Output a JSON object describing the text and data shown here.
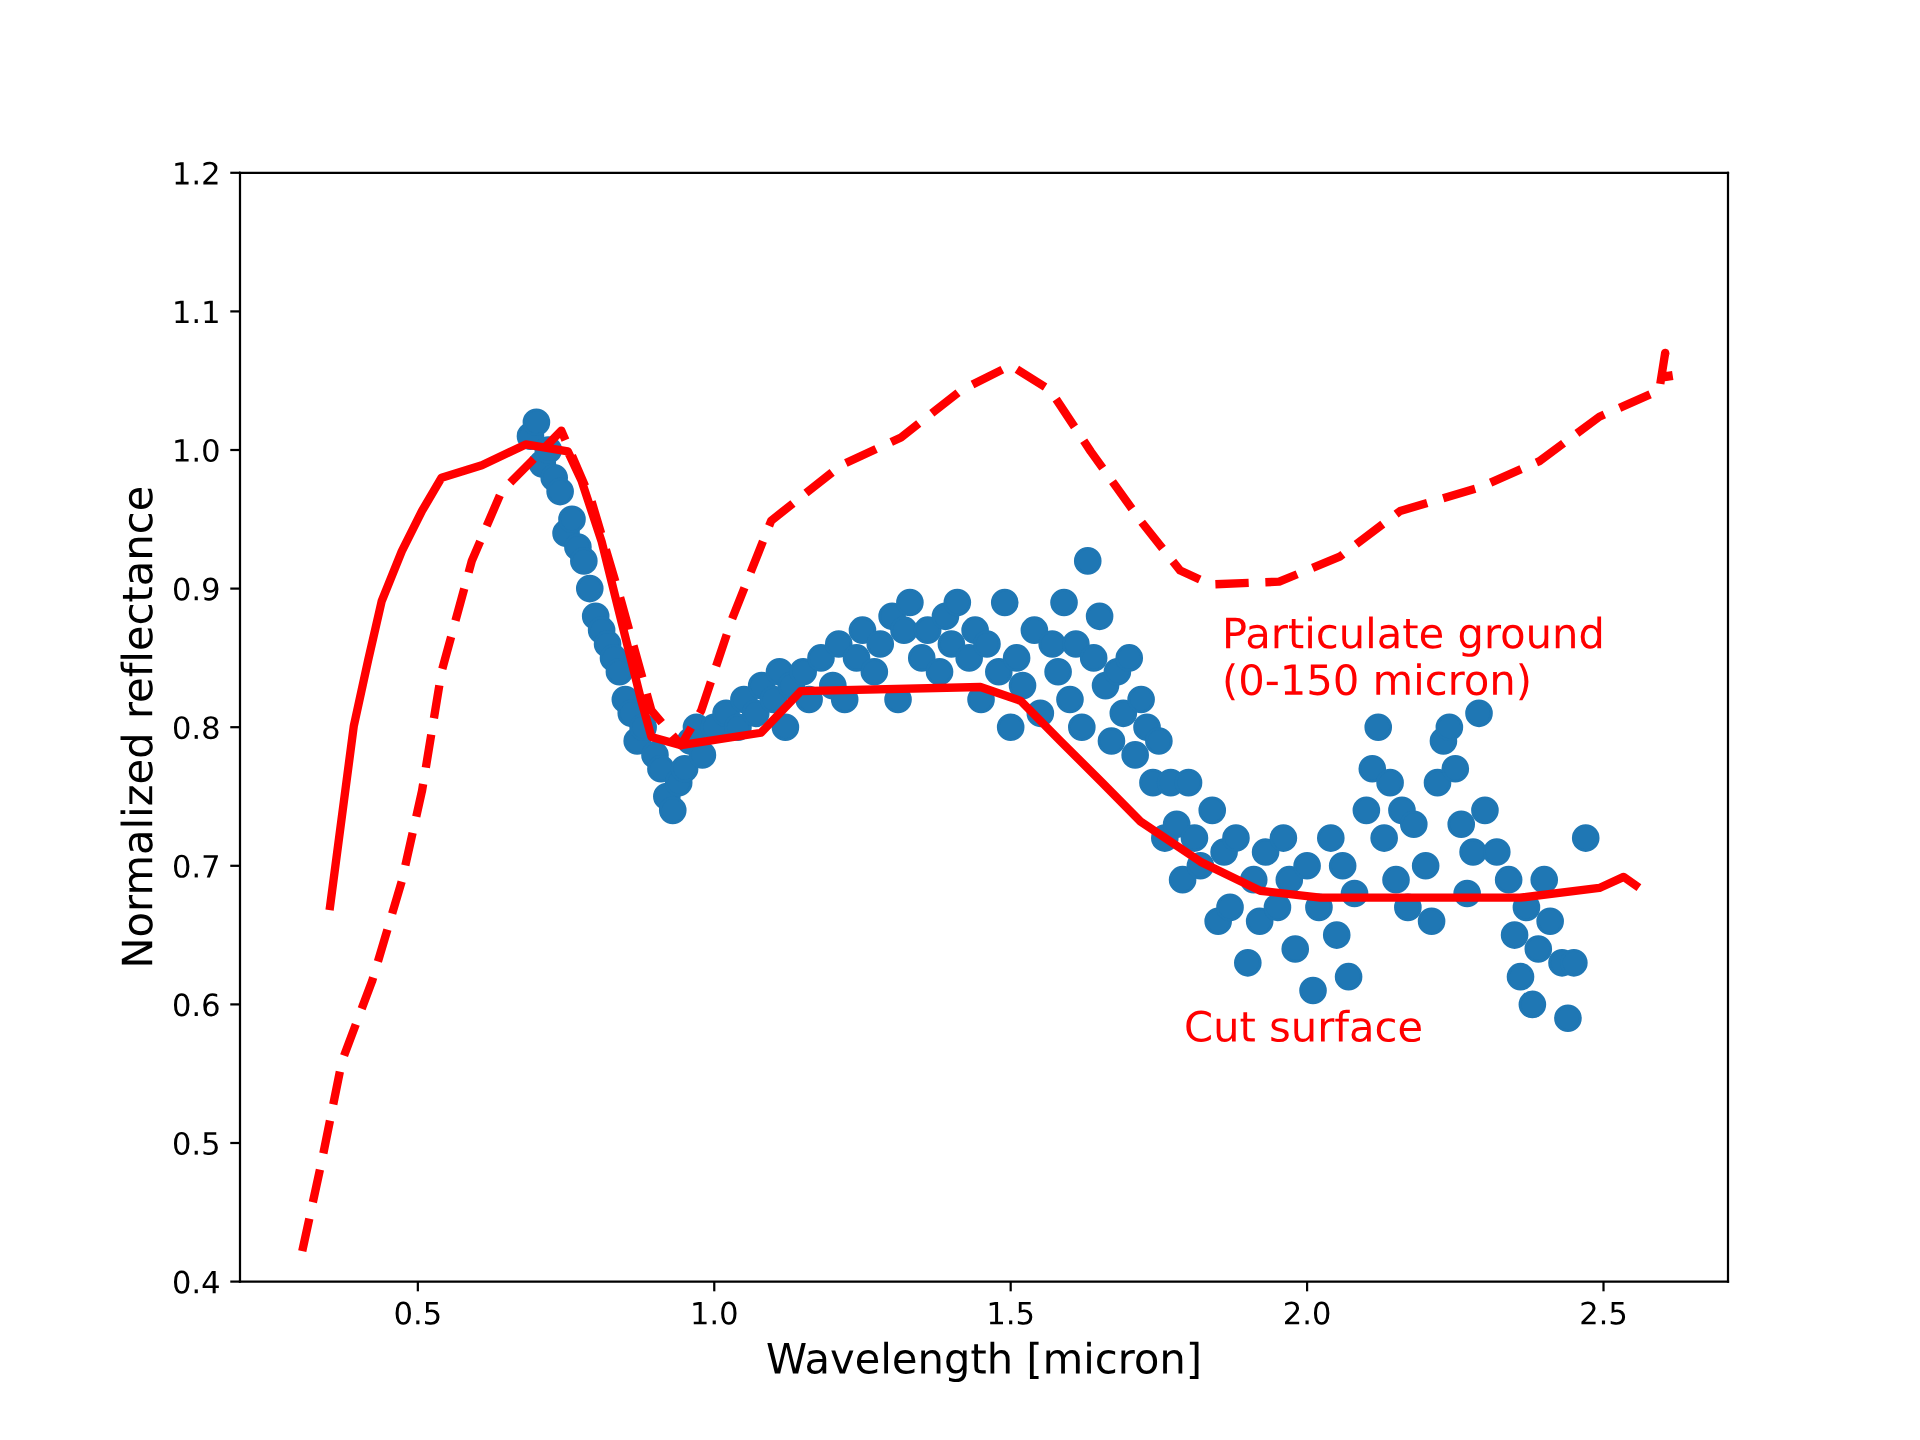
{
  "chart_data": {
    "type": "line",
    "xlabel": "Wavelength [micron]",
    "ylabel": "Normalized reflectance",
    "xlim": [
      0.2,
      2.71
    ],
    "ylim": [
      0.4,
      1.2
    ],
    "xticks": [
      0.5,
      {
        "value": 1,
        "label": "1.0"
      },
      1.5,
      {
        "value": 2,
        "label": "2.0"
      },
      2.5
    ],
    "yticks": [
      0.4,
      0.5,
      0.6,
      0.7,
      0.8,
      0.9,
      {
        "value": 1,
        "label": "1.0"
      },
      1.1,
      1.2
    ],
    "grid": false,
    "legend": false,
    "series": [
      {
        "type": "scatter",
        "marker": "circle",
        "color": "#1f77b4",
        "x": [
          0.69,
          0.7,
          0.71,
          0.72,
          0.73,
          0.74,
          0.75,
          0.76,
          0.77,
          0.78,
          0.79,
          0.8,
          0.81,
          0.82,
          0.83,
          0.84,
          0.85,
          0.86,
          0.87,
          0.88,
          0.9,
          0.91,
          0.92,
          0.93,
          0.94,
          0.95,
          0.96,
          0.97,
          0.98,
          1.0,
          1.02,
          1.04,
          1.05,
          1.07,
          1.08,
          1.1,
          1.11,
          1.12,
          1.13,
          1.15,
          1.16,
          1.18,
          1.2,
          1.21,
          1.22,
          1.24,
          1.25,
          1.27,
          1.28,
          1.3,
          1.31,
          1.32,
          1.33,
          1.35,
          1.36,
          1.38,
          1.39,
          1.4,
          1.41,
          1.43,
          1.44,
          1.45,
          1.46,
          1.48,
          1.49,
          1.5,
          1.51,
          1.52,
          1.54,
          1.55,
          1.57,
          1.58,
          1.59,
          1.6,
          1.61,
          1.62,
          1.63,
          1.64,
          1.65,
          1.66,
          1.67,
          1.68,
          1.69,
          1.7,
          1.71,
          1.72,
          1.73,
          1.74,
          1.75,
          1.76,
          1.77,
          1.78,
          1.79,
          1.8,
          1.81,
          1.82,
          1.84,
          1.85,
          1.86,
          1.87,
          1.88,
          1.9,
          1.91,
          1.92,
          1.93,
          1.95,
          1.96,
          1.97,
          1.98,
          2.0,
          2.01,
          2.02,
          2.04,
          2.05,
          2.06,
          2.07,
          2.08,
          2.1,
          2.11,
          2.12,
          2.13,
          2.14,
          2.15,
          2.16,
          2.17,
          2.18,
          2.2,
          2.21,
          2.22,
          2.23,
          2.24,
          2.25,
          2.26,
          2.27,
          2.28,
          2.29,
          2.3,
          2.32,
          2.34,
          2.35,
          2.36,
          2.37,
          2.38,
          2.39,
          2.4,
          2.41,
          2.43,
          2.44,
          2.45,
          2.47
        ],
        "values": [
          1.01,
          1.02,
          0.99,
          1.0,
          0.98,
          0.97,
          0.94,
          0.95,
          0.93,
          0.92,
          0.9,
          0.88,
          0.87,
          0.86,
          0.85,
          0.84,
          0.82,
          0.81,
          0.79,
          0.8,
          0.78,
          0.77,
          0.75,
          0.74,
          0.76,
          0.77,
          0.79,
          0.8,
          0.78,
          0.8,
          0.81,
          0.8,
          0.82,
          0.81,
          0.83,
          0.82,
          0.84,
          0.8,
          0.83,
          0.84,
          0.82,
          0.85,
          0.83,
          0.86,
          0.82,
          0.85,
          0.87,
          0.84,
          0.86,
          0.88,
          0.82,
          0.87,
          0.89,
          0.85,
          0.87,
          0.84,
          0.88,
          0.86,
          0.89,
          0.85,
          0.87,
          0.82,
          0.86,
          0.84,
          0.89,
          0.8,
          0.85,
          0.83,
          0.87,
          0.81,
          0.86,
          0.84,
          0.89,
          0.82,
          0.86,
          0.8,
          0.92,
          0.85,
          0.88,
          0.83,
          0.79,
          0.84,
          0.81,
          0.85,
          0.78,
          0.82,
          0.8,
          0.76,
          0.79,
          0.72,
          0.76,
          0.73,
          0.69,
          0.76,
          0.72,
          0.7,
          0.74,
          0.66,
          0.71,
          0.67,
          0.72,
          0.63,
          0.69,
          0.66,
          0.71,
          0.67,
          0.72,
          0.69,
          0.64,
          0.7,
          0.61,
          0.67,
          0.72,
          0.65,
          0.7,
          0.62,
          0.68,
          0.74,
          0.77,
          0.8,
          0.72,
          0.76,
          0.69,
          0.74,
          0.67,
          0.73,
          0.7,
          0.66,
          0.76,
          0.79,
          0.8,
          0.77,
          0.73,
          0.68,
          0.71,
          0.81,
          0.74,
          0.71,
          0.69,
          0.65,
          0.62,
          0.67,
          0.6,
          0.64,
          0.69,
          0.66,
          0.63,
          0.59,
          0.63,
          0.72
        ]
      },
      {
        "line_style": "dashed",
        "color": "#ff0000",
        "x": [
          0.305,
          0.338,
          0.372,
          0.423,
          0.473,
          0.507,
          0.54,
          0.591,
          0.641,
          0.692,
          0.742,
          0.793,
          0.843,
          0.894,
          0.944,
          0.978,
          1.029,
          1.096,
          1.214,
          1.315,
          1.416,
          1.5,
          1.567,
          1.635,
          1.719,
          1.786,
          1.837,
          1.953,
          2.055,
          2.157,
          2.291,
          2.392,
          2.493,
          2.594,
          2.604,
          2.611
        ],
        "values": [
          0.422,
          0.487,
          0.559,
          0.617,
          0.689,
          0.754,
          0.84,
          0.92,
          0.97,
          0.992,
          1.014,
          0.963,
          0.891,
          0.812,
          0.787,
          0.812,
          0.877,
          0.949,
          0.989,
          1.009,
          1.043,
          1.061,
          1.043,
          0.999,
          0.949,
          0.913,
          0.903,
          0.905,
          0.923,
          0.956,
          0.973,
          0.992,
          1.024,
          1.043,
          1.07,
          1.05
        ]
      },
      {
        "line_style": "solid",
        "color": "#ff0000",
        "x": [
          0.352,
          0.392,
          0.416,
          0.439,
          0.473,
          0.507,
          0.54,
          0.608,
          0.682,
          0.753,
          0.776,
          0.81,
          0.843,
          0.877,
          0.894,
          0.944,
          1.079,
          1.146,
          1.449,
          1.517,
          1.584,
          1.652,
          1.719,
          1.82,
          1.921,
          2.022,
          2.359,
          2.493,
          2.534,
          2.554
        ],
        "values": [
          0.671,
          0.801,
          0.848,
          0.891,
          0.927,
          0.956,
          0.98,
          0.989,
          1.004,
          0.999,
          0.978,
          0.934,
          0.877,
          0.819,
          0.793,
          0.787,
          0.796,
          0.826,
          0.829,
          0.819,
          0.79,
          0.761,
          0.732,
          0.703,
          0.682,
          0.677,
          0.677,
          0.684,
          0.692,
          0.686
        ]
      }
    ],
    "annotations": [
      "Particulate ground\n(0-150 micron)",
      "Cut surface"
    ]
  }
}
